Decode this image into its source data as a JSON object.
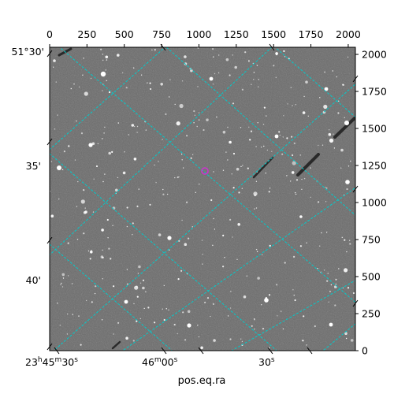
{
  "figure": {
    "xlabel": "pos.eq.ra",
    "top_pixel_ticks": [
      "0",
      "250",
      "500",
      "750",
      "1000",
      "1250",
      "1500",
      "1750",
      "2000"
    ],
    "right_pixel_ticks": [
      "0",
      "250",
      "500",
      "750",
      "1000",
      "1250",
      "1500",
      "1750",
      "2000"
    ],
    "dec_ticks": [
      "51°30'",
      "35'",
      "40'"
    ],
    "ra_ticks": [
      "23h45m30s",
      "46m00s",
      "30s"
    ],
    "ra_ticks_parts": [
      {
        "h": "23",
        "hs": "h",
        "m": "45",
        "ms": "m",
        "s": "30",
        "ss": "s"
      },
      {
        "m": "46",
        "ms": "m",
        "s": "00",
        "ss": "s"
      },
      {
        "s": "30",
        "ss": "s"
      }
    ],
    "grid_color": "#00cccc",
    "marker_color": "#cc33cc",
    "image_colors": {
      "background": "#6b6b6b",
      "stars": "#ffffff",
      "streaks": "#2a2a2a"
    }
  }
}
